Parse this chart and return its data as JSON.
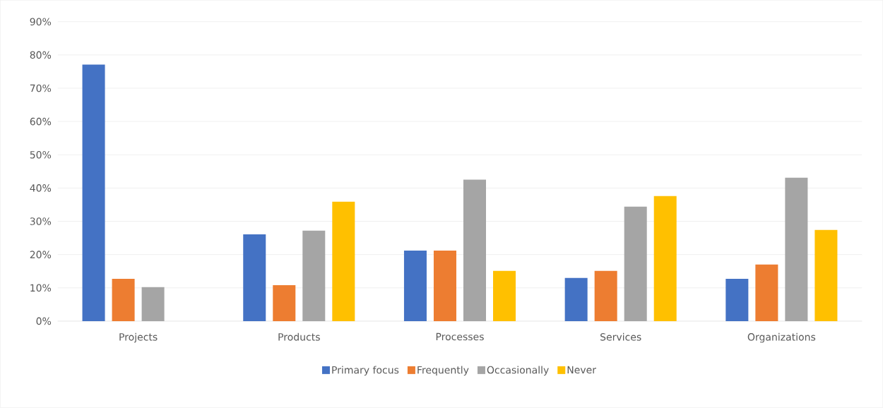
{
  "chart_data": {
    "type": "bar",
    "categories": [
      "Projects",
      "Products",
      "Processes",
      "Services",
      "Organizations"
    ],
    "series": [
      {
        "name": "Primary focus",
        "color": "#4472c4",
        "values": [
          77.1,
          26.1,
          21.2,
          13.0,
          12.7
        ]
      },
      {
        "name": "Frequently",
        "color": "#ed7d31",
        "values": [
          12.7,
          10.8,
          21.2,
          15.1,
          17.0
        ]
      },
      {
        "name": "Occasionally",
        "color": "#a5a5a5",
        "values": [
          10.2,
          27.2,
          42.5,
          34.4,
          43.1
        ]
      },
      {
        "name": "Never",
        "color": "#ffc000",
        "values": [
          0,
          35.9,
          15.1,
          37.6,
          27.4
        ]
      }
    ],
    "ylim": [
      0,
      90
    ],
    "yticks": [
      {
        "value": 0,
        "label": "0%"
      },
      {
        "value": 10,
        "label": "10%"
      },
      {
        "value": 20,
        "label": "20%"
      },
      {
        "value": 30,
        "label": "30%"
      },
      {
        "value": 40,
        "label": "40%"
      },
      {
        "value": 50,
        "label": "50%"
      },
      {
        "value": 60,
        "label": "60%"
      },
      {
        "value": 70,
        "label": "70%"
      },
      {
        "value": 80,
        "label": "80%"
      },
      {
        "value": 90,
        "label": "90%"
      }
    ],
    "grid": "y",
    "legend": "bottom"
  }
}
